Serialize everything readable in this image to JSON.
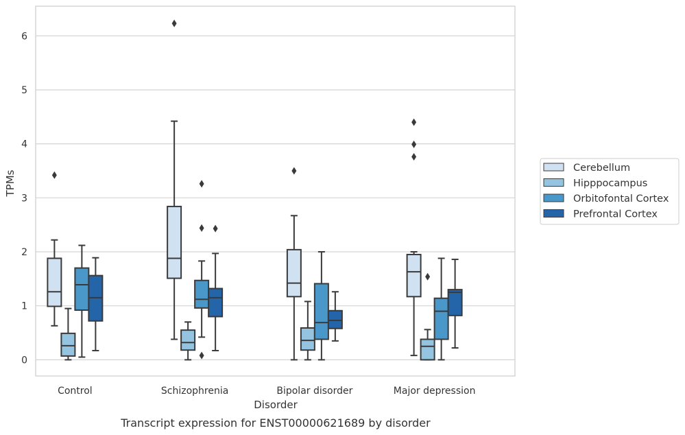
{
  "chart_data": {
    "type": "box",
    "caption": "Transcript expression for ENST00000621689 by disorder",
    "xlabel": "Disorder",
    "ylabel": "TPMs",
    "ylim": [
      -0.3,
      6.55
    ],
    "yticks": [
      0,
      1,
      2,
      3,
      4,
      5,
      6
    ],
    "grid": "horizontal",
    "legend_position": "right",
    "categories": [
      "Control",
      "Schizophrenia",
      "Bipolar disorder",
      "Major depression"
    ],
    "series": [
      {
        "name": "Cerebellum",
        "color": "#d0e1f2",
        "boxes": [
          {
            "min": 0.63,
            "q1": 0.99,
            "median": 1.26,
            "q3": 1.88,
            "max": 2.22,
            "outliers": [
              3.42
            ]
          },
          {
            "min": 0.38,
            "q1": 1.51,
            "median": 1.88,
            "q3": 2.84,
            "max": 4.42,
            "outliers": [
              6.23
            ]
          },
          {
            "min": 0.0,
            "q1": 1.17,
            "median": 1.42,
            "q3": 2.04,
            "max": 2.67,
            "outliers": [
              3.5
            ]
          },
          {
            "min": 0.08,
            "q1": 1.17,
            "median": 1.63,
            "q3": 1.95,
            "max": 2.0,
            "outliers": [
              4.4,
              3.99,
              3.76
            ]
          }
        ]
      },
      {
        "name": "Hipppocampus",
        "color": "#94c4df",
        "boxes": [
          {
            "min": 0.0,
            "q1": 0.07,
            "median": 0.26,
            "q3": 0.49,
            "max": 0.95,
            "outliers": []
          },
          {
            "min": 0.0,
            "q1": 0.18,
            "median": 0.32,
            "q3": 0.55,
            "max": 0.7,
            "outliers": []
          },
          {
            "min": 0.0,
            "q1": 0.18,
            "median": 0.36,
            "q3": 0.59,
            "max": 1.08,
            "outliers": []
          },
          {
            "min": 0.0,
            "q1": 0.0,
            "median": 0.25,
            "q3": 0.38,
            "max": 0.56,
            "outliers": [
              1.54
            ]
          }
        ]
      },
      {
        "name": "Orbitofontal Cortex",
        "color": "#4a98c9",
        "boxes": [
          {
            "min": 0.05,
            "q1": 0.92,
            "median": 1.39,
            "q3": 1.7,
            "max": 2.12,
            "outliers": []
          },
          {
            "min": 0.42,
            "q1": 0.96,
            "median": 1.12,
            "q3": 1.47,
            "max": 1.83,
            "outliers": [
              3.26,
              2.44,
              0.08
            ]
          },
          {
            "min": 0.0,
            "q1": 0.38,
            "median": 0.69,
            "q3": 1.41,
            "max": 2.0,
            "outliers": []
          },
          {
            "min": 0.0,
            "q1": 0.38,
            "median": 0.9,
            "q3": 1.14,
            "max": 1.88,
            "outliers": []
          }
        ]
      },
      {
        "name": "Prefrontal Cortex",
        "color": "#2365a8",
        "boxes": [
          {
            "min": 0.17,
            "q1": 0.72,
            "median": 1.15,
            "q3": 1.56,
            "max": 1.89,
            "outliers": []
          },
          {
            "min": 0.17,
            "q1": 0.8,
            "median": 1.15,
            "q3": 1.32,
            "max": 1.97,
            "outliers": [
              2.43
            ]
          },
          {
            "min": 0.35,
            "q1": 0.58,
            "median": 0.73,
            "q3": 0.91,
            "max": 1.26,
            "outliers": []
          },
          {
            "min": 0.22,
            "q1": 0.82,
            "median": 1.25,
            "q3": 1.3,
            "max": 1.86,
            "outliers": []
          }
        ]
      }
    ]
  }
}
